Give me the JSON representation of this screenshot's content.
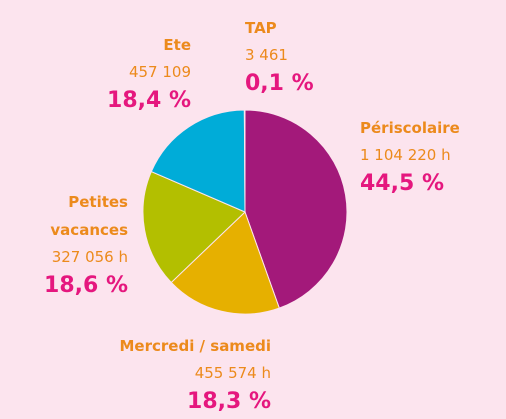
{
  "chart_data": {
    "type": "pie",
    "categories": [
      "Périscolaire",
      "Mercredi / samedi",
      "Petites vacances",
      "Ete",
      "TAP"
    ],
    "values": [
      44.5,
      18.3,
      18.6,
      18.4,
      0.1
    ],
    "value_labels": [
      "44,5 %",
      "18,3 %",
      "18,6 %",
      "18,4 %",
      "0,1 %"
    ],
    "amounts": [
      1104220,
      455574,
      327056,
      457109,
      3461
    ],
    "amount_labels": [
      "1 104 220 h",
      "455 574 h",
      "327 056 h",
      "457 109",
      "3 461"
    ],
    "colors": [
      "#a3197a",
      "#e6b000",
      "#b3bf00",
      "#00acd8",
      "#7f7f7f"
    ]
  }
}
